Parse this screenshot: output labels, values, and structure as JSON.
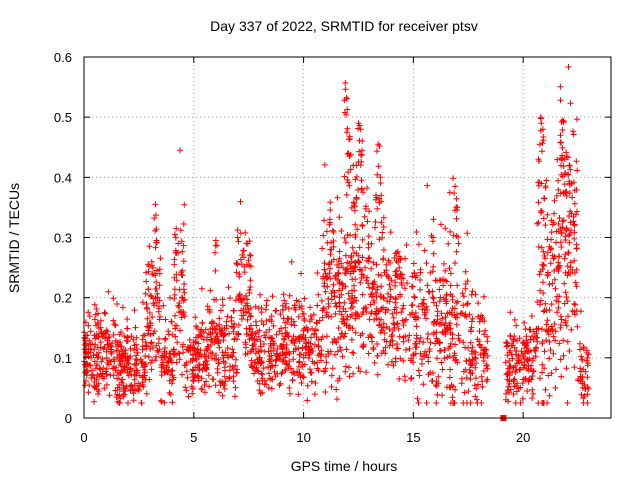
{
  "chart_data": {
    "type": "scatter",
    "title": "Day 337 of 2022, SRMTID for receiver ptsv",
    "xlabel": "GPS time / hours",
    "ylabel": "SRMTID / TECUs",
    "xlim": [
      0,
      24
    ],
    "ylim": [
      0,
      0.6
    ],
    "x_ticks": [
      0,
      5,
      10,
      15,
      20
    ],
    "x_tick_labels": [
      "0",
      "5",
      "10",
      "15",
      "20"
    ],
    "y_ticks": [
      0,
      0.1,
      0.2,
      0.3,
      0.4,
      0.5,
      0.6
    ],
    "y_tick_labels": [
      "0",
      "0.1",
      "0.2",
      "0.3",
      "0.4",
      "0.5",
      "0.6"
    ],
    "grid": true,
    "marker": "+",
    "series_color": "#ff0000",
    "segments": [
      {
        "x": [
          0.0,
          0.5
        ],
        "mean": 0.1,
        "spread": 0.035,
        "n": 60
      },
      {
        "x": [
          0.5,
          2.0
        ],
        "mean": 0.105,
        "spread": 0.035,
        "n": 150
      },
      {
        "x": [
          1.6,
          2.8
        ],
        "mean": 0.08,
        "spread": 0.03,
        "n": 110
      },
      {
        "x": [
          2.8,
          3.5
        ],
        "mean": 0.17,
        "spread": 0.05,
        "n": 80
      },
      {
        "x": [
          3.5,
          4.1
        ],
        "mean": 0.09,
        "spread": 0.03,
        "n": 60
      },
      {
        "x": [
          4.1,
          4.6
        ],
        "mean": 0.2,
        "spread": 0.06,
        "n": 60
      },
      {
        "x": [
          4.6,
          5.6
        ],
        "mean": 0.09,
        "spread": 0.03,
        "n": 100
      },
      {
        "x": [
          5.6,
          7.0
        ],
        "mean": 0.115,
        "spread": 0.04,
        "n": 140
      },
      {
        "x": [
          7.0,
          7.6
        ],
        "mean": 0.2,
        "spread": 0.05,
        "n": 70
      },
      {
        "x": [
          7.6,
          9.0
        ],
        "mean": 0.11,
        "spread": 0.035,
        "n": 140
      },
      {
        "x": [
          9.0,
          10.8
        ],
        "mean": 0.12,
        "spread": 0.04,
        "n": 180
      },
      {
        "x": [
          10.8,
          12.0
        ],
        "mean": 0.2,
        "spread": 0.07,
        "n": 150
      },
      {
        "x": [
          12.0,
          13.0
        ],
        "mean": 0.24,
        "spread": 0.09,
        "n": 130
      },
      {
        "x": [
          13.0,
          14.5
        ],
        "mean": 0.18,
        "spread": 0.06,
        "n": 160
      },
      {
        "x": [
          14.5,
          16.5
        ],
        "mean": 0.15,
        "spread": 0.06,
        "n": 180
      },
      {
        "x": [
          16.5,
          17.5
        ],
        "mean": 0.14,
        "spread": 0.07,
        "n": 100
      },
      {
        "x": [
          17.5,
          18.4
        ],
        "mean": 0.1,
        "spread": 0.04,
        "n": 80
      },
      {
        "x": [
          19.2,
          20.0
        ],
        "mean": 0.08,
        "spread": 0.03,
        "n": 80
      },
      {
        "x": [
          20.0,
          20.6
        ],
        "mean": 0.1,
        "spread": 0.03,
        "n": 60
      },
      {
        "x": [
          20.6,
          21.5
        ],
        "mean": 0.2,
        "spread": 0.1,
        "n": 110
      },
      {
        "x": [
          21.5,
          22.5
        ],
        "mean": 0.28,
        "spread": 0.11,
        "n": 140
      },
      {
        "x": [
          22.5,
          23.0
        ],
        "mean": 0.08,
        "spread": 0.03,
        "n": 40
      }
    ],
    "peaks": [
      {
        "x": 3.25,
        "y": 0.355
      },
      {
        "x": 3.3,
        "y": 0.295
      },
      {
        "x": 4.2,
        "y": 0.315
      },
      {
        "x": 6.0,
        "y": 0.295
      },
      {
        "x": 7.0,
        "y": 0.3
      },
      {
        "x": 11.2,
        "y": 0.33
      },
      {
        "x": 11.9,
        "y": 0.557
      },
      {
        "x": 11.95,
        "y": 0.532
      },
      {
        "x": 12.1,
        "y": 0.468
      },
      {
        "x": 12.05,
        "y": 0.44
      },
      {
        "x": 12.5,
        "y": 0.49
      },
      {
        "x": 12.6,
        "y": 0.48
      },
      {
        "x": 12.4,
        "y": 0.42
      },
      {
        "x": 13.4,
        "y": 0.455
      },
      {
        "x": 13.5,
        "y": 0.4
      },
      {
        "x": 13.3,
        "y": 0.37
      },
      {
        "x": 15.9,
        "y": 0.3
      },
      {
        "x": 16.9,
        "y": 0.385
      },
      {
        "x": 17.0,
        "y": 0.35
      },
      {
        "x": 20.8,
        "y": 0.5
      },
      {
        "x": 20.9,
        "y": 0.48
      },
      {
        "x": 20.7,
        "y": 0.43
      },
      {
        "x": 21.8,
        "y": 0.495
      },
      {
        "x": 21.9,
        "y": 0.43
      },
      {
        "x": 22.1,
        "y": 0.42
      },
      {
        "x": 21.7,
        "y": 0.47
      }
    ],
    "gap_marker": {
      "x": 19.1,
      "y": 0.0
    }
  }
}
